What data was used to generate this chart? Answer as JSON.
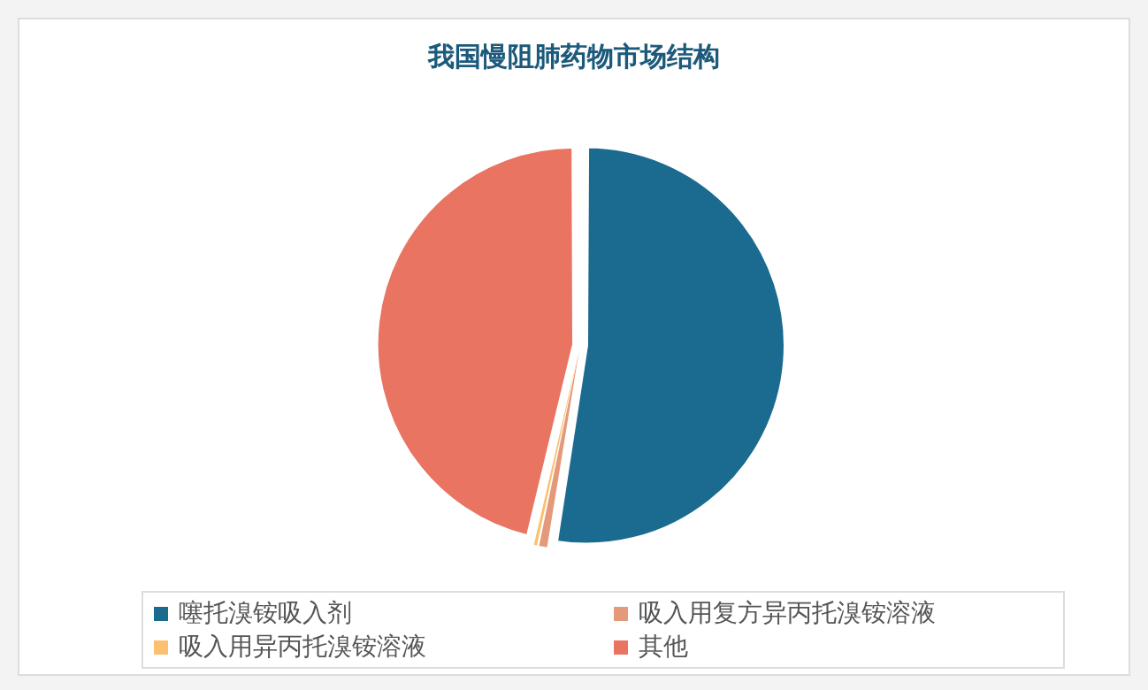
{
  "chart_data": {
    "type": "pie",
    "title": "我国慢阻肺药物市场结构",
    "categories": [
      "噻托溴铵吸入剂",
      "吸入用复方异丙托溴铵溶液",
      "吸入用异丙托溴铵溶液",
      "其他"
    ],
    "values": [
      52.5,
      0.8,
      0.4,
      46.3
    ],
    "colors": [
      "#1b6a8f",
      "#e49a7a",
      "#fdc06e",
      "#e97461"
    ],
    "legend": "bottom"
  }
}
